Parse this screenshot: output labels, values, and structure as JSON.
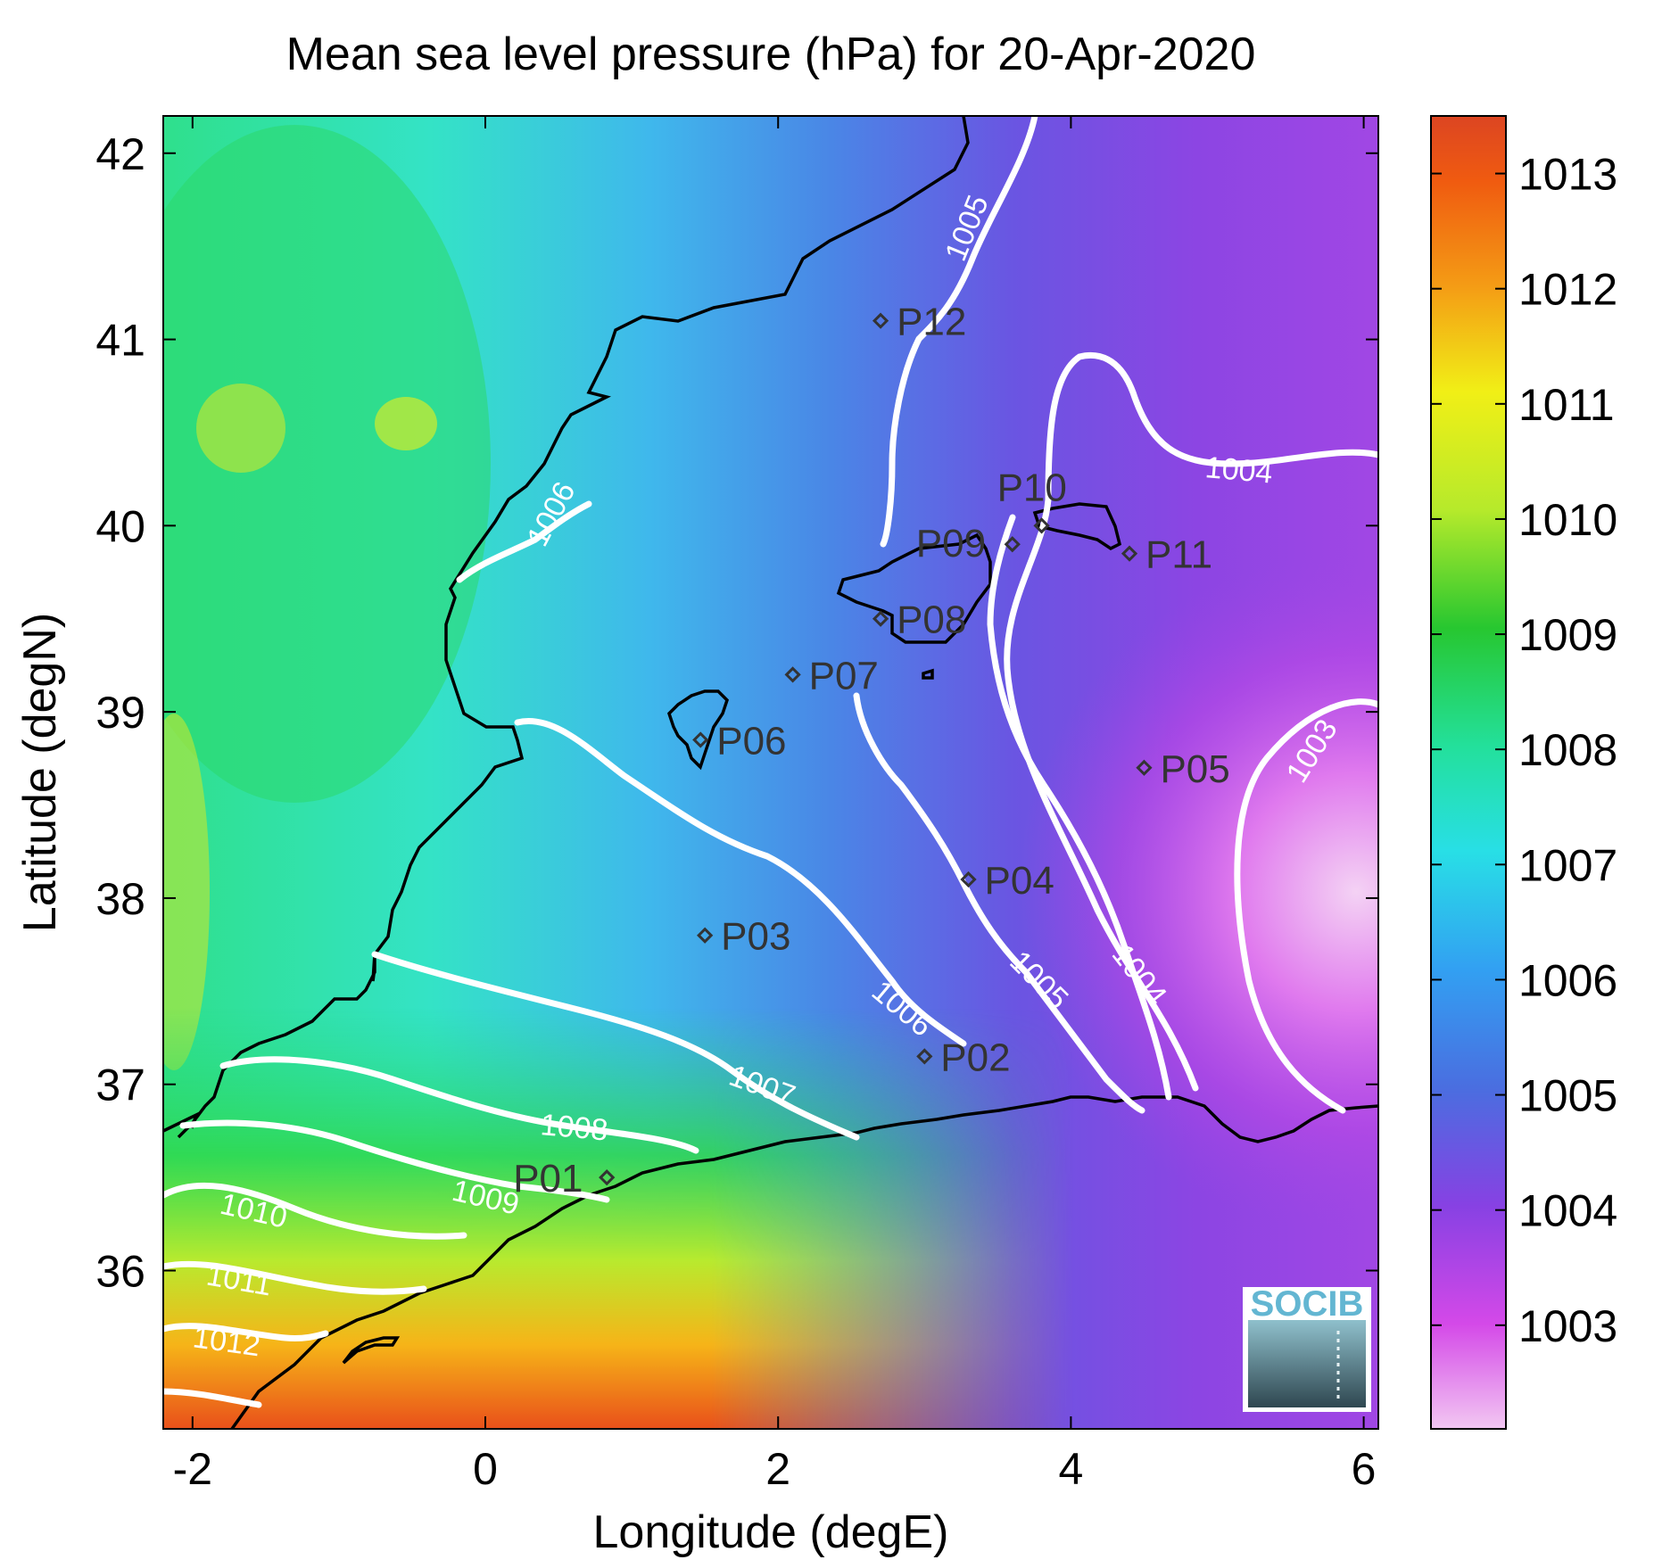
{
  "title": "Mean sea level pressure (hPa) for 20-Apr-2020",
  "x_axis": {
    "label": "Longitude (degE)",
    "ticks": [
      "-2",
      "0",
      "2",
      "4",
      "6"
    ],
    "values": [
      -2,
      0,
      2,
      4,
      6
    ],
    "range": [
      -2.2,
      6.1
    ]
  },
  "y_axis": {
    "label": "Latitude (degN)",
    "ticks": [
      "36",
      "37",
      "38",
      "39",
      "40",
      "41",
      "42"
    ],
    "values": [
      36,
      37,
      38,
      39,
      40,
      41,
      42
    ],
    "range": [
      35.15,
      42.2
    ]
  },
  "colorbar": {
    "ticks": [
      "1003",
      "1004",
      "1005",
      "1006",
      "1007",
      "1008",
      "1009",
      "1010",
      "1011",
      "1012",
      "1013"
    ],
    "values": [
      1003,
      1004,
      1005,
      1006,
      1007,
      1008,
      1009,
      1010,
      1011,
      1012,
      1013
    ],
    "range": [
      1002.1,
      1013.5
    ],
    "colors": [
      "#f2c7f2",
      "#d449e8",
      "#8741e3",
      "#4a6ee0",
      "#32a0f2",
      "#28dfe6",
      "#23e09b",
      "#27c730",
      "#b6ea2b",
      "#f1ef16",
      "#f49c15",
      "#f05b10",
      "#dc4522"
    ]
  },
  "stations": [
    {
      "name": "P01",
      "lon": 0.83,
      "lat": 36.5
    },
    {
      "name": "P02",
      "lon": 3.0,
      "lat": 37.15
    },
    {
      "name": "P03",
      "lon": 1.5,
      "lat": 37.8
    },
    {
      "name": "P04",
      "lon": 3.3,
      "lat": 38.1
    },
    {
      "name": "P05",
      "lon": 4.5,
      "lat": 38.7
    },
    {
      "name": "P06",
      "lon": 1.47,
      "lat": 38.85
    },
    {
      "name": "P07",
      "lon": 2.1,
      "lat": 39.2
    },
    {
      "name": "P08",
      "lon": 2.7,
      "lat": 39.5
    },
    {
      "name": "P09",
      "lon": 3.6,
      "lat": 39.9
    },
    {
      "name": "P10",
      "lon": 3.8,
      "lat": 40.0
    },
    {
      "name": "P11",
      "lon": 4.4,
      "lat": 39.85
    },
    {
      "name": "P12",
      "lon": 2.7,
      "lat": 41.1
    }
  ],
  "contour_labels": [
    "1003",
    "1004",
    "1004",
    "1005",
    "1005",
    "1006",
    "1006",
    "1007",
    "1008",
    "1009",
    "1010",
    "1011",
    "1012"
  ],
  "logo": {
    "text": "SOCIB"
  }
}
